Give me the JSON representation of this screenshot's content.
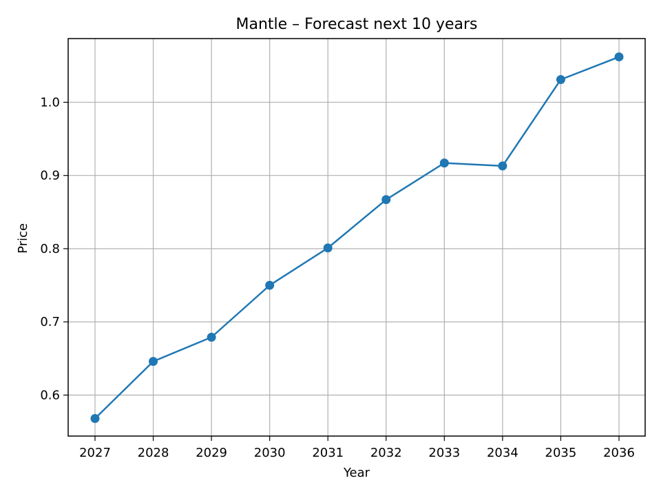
{
  "chart_data": {
    "type": "line",
    "title": "Mantle – Forecast next 10 years",
    "xlabel": "Year",
    "ylabel": "Price",
    "x": [
      "2027",
      "2028",
      "2029",
      "2030",
      "2031",
      "2032",
      "2033",
      "2034",
      "2035",
      "2036"
    ],
    "series": [
      {
        "name": "Price",
        "values": [
          0.568,
          0.646,
          0.679,
          0.75,
          0.801,
          0.867,
          0.917,
          0.913,
          1.031,
          1.062
        ]
      }
    ],
    "yticks": [
      "0.6",
      "0.7",
      "0.8",
      "0.9",
      "1.0"
    ],
    "ylim": [
      0.544,
      1.087
    ],
    "grid": true,
    "markers": true,
    "line_color": "#1f77b4",
    "grid_color": "#b0b0b0",
    "axis_color": "#000000"
  }
}
